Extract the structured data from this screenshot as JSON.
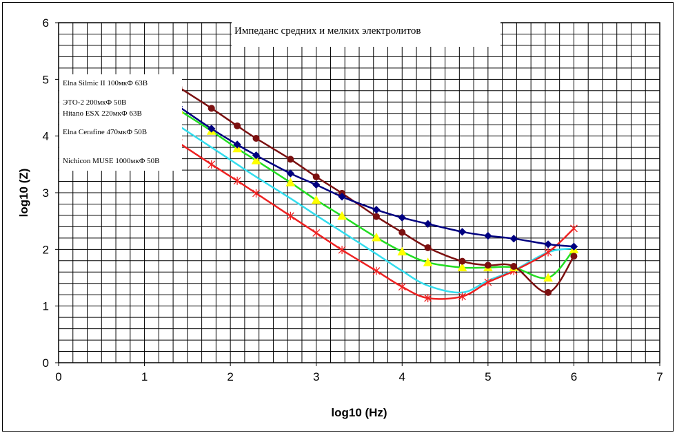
{
  "chart_data": {
    "type": "line",
    "title": "Импеданс средних и мелких электролитов",
    "xlabel": "log10 (Hz)",
    "ylabel": "log10 (Z)",
    "xlim": [
      0,
      7
    ],
    "ylim": [
      0,
      6
    ],
    "x_ticks": [
      "0",
      "1",
      "2",
      "3",
      "4",
      "5",
      "6",
      "7"
    ],
    "y_ticks": [
      "0",
      "1",
      "2",
      "3",
      "4",
      "5",
      "6"
    ],
    "grid": true,
    "legend_placement": "left, inside plot",
    "series": [
      {
        "name": "Elna Silmic II 100мкФ 63В",
        "color": "#000080",
        "marker": "diamond",
        "x": [
          1.4,
          1.78,
          2.08,
          2.3,
          2.7,
          3.0,
          3.3,
          3.7,
          4.0,
          4.3,
          4.7,
          5.0,
          5.3,
          5.7,
          6.0
        ],
        "y": [
          4.52,
          4.13,
          3.85,
          3.66,
          3.34,
          3.14,
          2.93,
          2.7,
          2.56,
          2.45,
          2.31,
          2.24,
          2.19,
          2.09,
          2.05
        ]
      },
      {
        "name": "ЭТО-2 200мкФ 50В",
        "color": "#7B1010",
        "marker": "circle",
        "x": [
          1.4,
          1.78,
          2.08,
          2.3,
          2.7,
          3.0,
          3.3,
          3.7,
          4.0,
          4.3,
          4.7,
          5.0,
          5.3,
          5.7,
          6.0
        ],
        "y": [
          4.86,
          4.49,
          4.18,
          3.96,
          3.59,
          3.28,
          2.99,
          2.58,
          2.3,
          2.03,
          1.79,
          1.72,
          1.7,
          1.24,
          1.88
        ]
      },
      {
        "name": "Hitano ESX 220мкФ 63В",
        "color": "#22DD22",
        "marker": "triangle",
        "x": [
          1.4,
          1.78,
          2.08,
          2.3,
          2.7,
          3.0,
          3.3,
          3.7,
          4.0,
          4.3,
          4.7,
          5.0,
          5.3,
          5.7,
          6.0
        ],
        "y": [
          4.46,
          4.09,
          3.78,
          3.57,
          3.18,
          2.87,
          2.59,
          2.21,
          1.96,
          1.77,
          1.68,
          1.68,
          1.68,
          1.5,
          2.0
        ]
      },
      {
        "name": "Elna Cerafine 470мкФ 50В",
        "color": "#33DDEE",
        "marker": "none",
        "x": [
          1.4,
          1.78,
          2.08,
          2.3,
          2.7,
          3.0,
          3.3,
          3.7,
          4.0,
          4.3,
          4.7,
          5.0,
          5.3,
          5.7,
          6.0
        ],
        "y": [
          4.18,
          3.8,
          3.5,
          3.28,
          2.9,
          2.6,
          2.31,
          1.92,
          1.62,
          1.36,
          1.24,
          1.45,
          1.63,
          1.95,
          2.02
        ]
      },
      {
        "name": "Nichicon MUSE 1000мкФ 50В",
        "color": "#EE2222",
        "marker": "star",
        "x": [
          1.4,
          1.78,
          2.08,
          2.3,
          2.7,
          3.0,
          3.3,
          3.7,
          4.0,
          4.3,
          4.7,
          5.0,
          5.3,
          5.7,
          6.0
        ],
        "y": [
          3.88,
          3.5,
          3.21,
          2.99,
          2.59,
          2.29,
          1.99,
          1.62,
          1.34,
          1.14,
          1.17,
          1.42,
          1.62,
          1.95,
          2.37
        ]
      }
    ]
  }
}
